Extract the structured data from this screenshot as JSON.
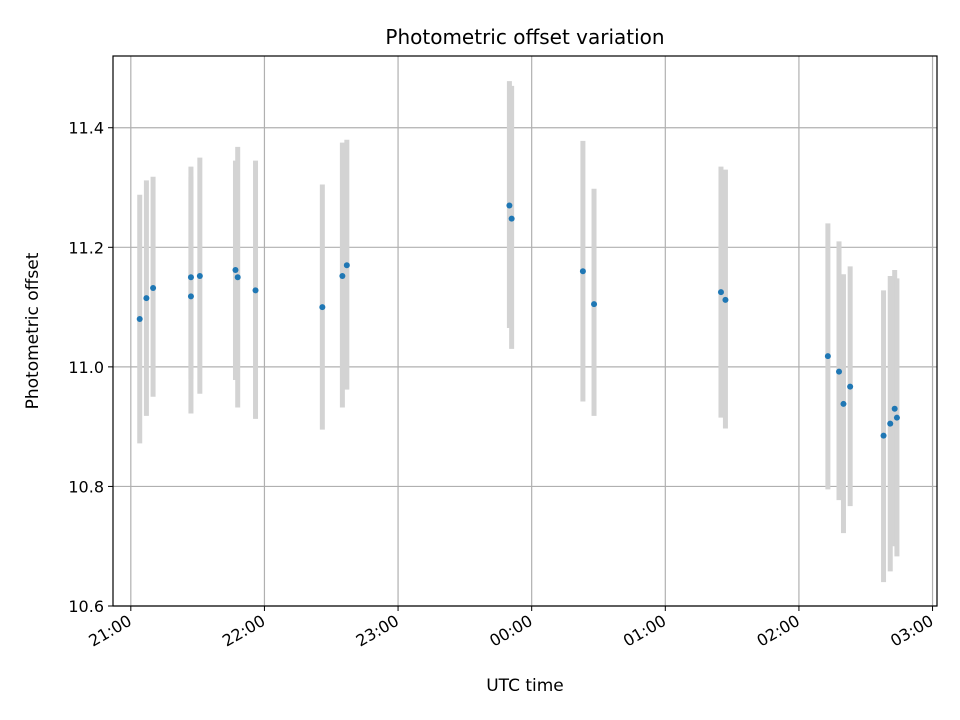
{
  "chart_data": {
    "type": "scatter",
    "title": "Photometric offset variation",
    "xlabel": "UTC time",
    "ylabel": "Photometric offset",
    "grid": true,
    "xlim": [
      "20:52",
      "03:02"
    ],
    "ylim": [
      10.6,
      11.52
    ],
    "x_ticks": [
      "21:00",
      "22:00",
      "23:00",
      "00:00",
      "01:00",
      "02:00",
      "03:00"
    ],
    "y_ticks": [
      "10.6",
      "10.8",
      "11.0",
      "11.2",
      "11.4"
    ],
    "marker_color": "#1f77b4",
    "errorbar_color": "#d3d3d3",
    "points": [
      {
        "x": "21:04",
        "y": 11.08,
        "ylow": 10.872,
        "yhigh": 11.288
      },
      {
        "x": "21:07",
        "y": 11.115,
        "ylow": 10.918,
        "yhigh": 11.312
      },
      {
        "x": "21:10",
        "y": 11.132,
        "ylow": 10.95,
        "yhigh": 11.318
      },
      {
        "x": "21:27",
        "y": 11.15,
        "ylow": 10.98,
        "yhigh": 11.335
      },
      {
        "x": "21:27",
        "y": 11.118,
        "ylow": 10.922,
        "yhigh": 11.318
      },
      {
        "x": "21:31",
        "y": 11.152,
        "ylow": 10.955,
        "yhigh": 11.35
      },
      {
        "x": "21:47",
        "y": 11.162,
        "ylow": 10.978,
        "yhigh": 11.345
      },
      {
        "x": "21:48",
        "y": 11.15,
        "ylow": 10.932,
        "yhigh": 11.368
      },
      {
        "x": "21:56",
        "y": 11.128,
        "ylow": 10.913,
        "yhigh": 11.345
      },
      {
        "x": "22:26",
        "y": 11.1,
        "ylow": 10.895,
        "yhigh": 11.305
      },
      {
        "x": "22:35",
        "y": 11.152,
        "ylow": 10.932,
        "yhigh": 11.375
      },
      {
        "x": "22:37",
        "y": 11.17,
        "ylow": 10.962,
        "yhigh": 11.38
      },
      {
        "x": "23:50",
        "y": 11.27,
        "ylow": 11.065,
        "yhigh": 11.478
      },
      {
        "x": "23:51",
        "y": 11.248,
        "ylow": 11.03,
        "yhigh": 11.47
      },
      {
        "x": "00:23",
        "y": 11.16,
        "ylow": 10.942,
        "yhigh": 11.378
      },
      {
        "x": "00:28",
        "y": 11.105,
        "ylow": 10.918,
        "yhigh": 11.298
      },
      {
        "x": "01:25",
        "y": 11.125,
        "ylow": 10.915,
        "yhigh": 11.335
      },
      {
        "x": "01:27",
        "y": 11.112,
        "ylow": 10.897,
        "yhigh": 11.33
      },
      {
        "x": "02:13",
        "y": 11.018,
        "ylow": 10.795,
        "yhigh": 11.24
      },
      {
        "x": "02:18",
        "y": 10.992,
        "ylow": 10.777,
        "yhigh": 11.21
      },
      {
        "x": "02:20",
        "y": 10.938,
        "ylow": 10.722,
        "yhigh": 11.155
      },
      {
        "x": "02:23",
        "y": 10.967,
        "ylow": 10.767,
        "yhigh": 11.168
      },
      {
        "x": "02:38",
        "y": 10.885,
        "ylow": 10.64,
        "yhigh": 11.128
      },
      {
        "x": "02:41",
        "y": 10.905,
        "ylow": 10.658,
        "yhigh": 11.152
      },
      {
        "x": "02:43",
        "y": 10.93,
        "ylow": 10.7,
        "yhigh": 11.162
      },
      {
        "x": "02:44",
        "y": 10.915,
        "ylow": 10.683,
        "yhigh": 11.148
      }
    ]
  }
}
